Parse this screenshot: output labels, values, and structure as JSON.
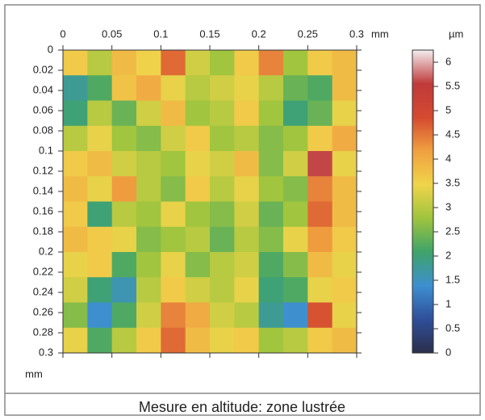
{
  "chart_data": {
    "type": "heatmap",
    "caption": "Mesure en altitude: zone lustrée",
    "x_label": "mm",
    "y_label": "mm",
    "colorbar_label": "µm",
    "xlim": [
      0,
      0.3
    ],
    "xticks": [
      0,
      0.05,
      0.1,
      0.15,
      0.2,
      0.25,
      0.3
    ],
    "ylim": [
      0,
      0.3
    ],
    "yticks": [
      0,
      0.02,
      0.04,
      0.06,
      0.08,
      0.1,
      0.12,
      0.14,
      0.16,
      0.18,
      0.2,
      0.22,
      0.24,
      0.26,
      0.28,
      0.3
    ],
    "y_inverted": true,
    "clim": [
      0,
      6.25
    ],
    "cticks": [
      0,
      0.5,
      1,
      1.5,
      2,
      2.5,
      3,
      3.5,
      4,
      4.5,
      5,
      5.5,
      6
    ],
    "colors": [
      "#2b2f4a",
      "#2f4f9a",
      "#3d8fd0",
      "#3fa36a",
      "#9ec43e",
      "#f0d44a",
      "#f0a040",
      "#d44a30",
      "#c03a3a",
      "#f4eef0"
    ],
    "z": [
      [
        3.6,
        3.0,
        3.8,
        3.5,
        4.6,
        3.2,
        2.8,
        3.6,
        4.4,
        2.8,
        3.6,
        3.8
      ],
      [
        1.8,
        2.2,
        3.7,
        4.0,
        3.4,
        3.0,
        3.2,
        3.4,
        3.0,
        2.4,
        2.2,
        3.8
      ],
      [
        2.0,
        3.0,
        2.4,
        3.2,
        3.8,
        2.8,
        3.0,
        3.6,
        2.8,
        2.0,
        2.4,
        3.4
      ],
      [
        3.0,
        3.4,
        2.8,
        2.6,
        3.2,
        3.6,
        2.8,
        3.0,
        2.6,
        2.8,
        3.6,
        4.0
      ],
      [
        3.6,
        3.8,
        3.2,
        3.0,
        2.8,
        3.4,
        3.2,
        3.8,
        2.6,
        3.2,
        5.6,
        3.4
      ],
      [
        3.8,
        3.4,
        4.2,
        3.0,
        2.6,
        3.6,
        3.0,
        3.4,
        2.8,
        2.6,
        4.4,
        3.8
      ],
      [
        3.6,
        2.0,
        3.0,
        2.8,
        3.4,
        2.8,
        2.6,
        3.2,
        2.4,
        2.8,
        4.6,
        3.8
      ],
      [
        3.8,
        3.6,
        3.4,
        2.6,
        2.8,
        3.0,
        2.4,
        3.0,
        2.6,
        3.4,
        4.2,
        3.6
      ],
      [
        3.4,
        3.6,
        2.2,
        2.8,
        3.4,
        2.6,
        3.0,
        3.2,
        2.2,
        2.6,
        3.8,
        3.4
      ],
      [
        3.2,
        2.0,
        1.6,
        3.0,
        3.6,
        3.2,
        3.0,
        3.4,
        2.0,
        2.2,
        3.4,
        3.6
      ],
      [
        2.6,
        1.4,
        2.2,
        3.2,
        4.4,
        4.0,
        3.2,
        3.0,
        1.8,
        1.4,
        4.8,
        3.4
      ],
      [
        3.4,
        2.2,
        3.0,
        3.6,
        4.6,
        3.8,
        3.4,
        3.6,
        2.8,
        3.0,
        3.6,
        3.8
      ]
    ]
  }
}
